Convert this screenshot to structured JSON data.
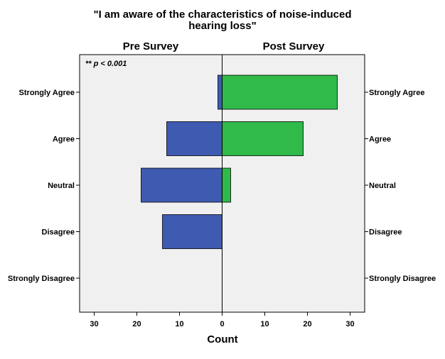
{
  "chart_data": {
    "type": "bar",
    "orientation": "horizontal",
    "layout": "back-to-back population pyramid",
    "title_line1": "\"I am aware of the characteristics of noise-induced",
    "title_line2": "hearing loss\"",
    "panels": [
      "Pre Survey",
      "Post Survey"
    ],
    "categories": [
      "Strongly Agree",
      "Agree",
      "Neutral",
      "Disagree",
      "Strongly Disagree"
    ],
    "series": [
      {
        "name": "Pre Survey",
        "color": "#3f5ab1",
        "values": [
          1,
          13,
          19,
          14,
          0
        ]
      },
      {
        "name": "Post Survey",
        "color": "#2fba49",
        "values": [
          27,
          19,
          2,
          0,
          0
        ]
      }
    ],
    "xlabel": "Count",
    "xlim": [
      -33.5,
      33.5
    ],
    "xticks": [
      -30,
      -20,
      -10,
      0,
      10,
      20,
      30
    ],
    "xtick_labels": [
      "30",
      "20",
      "10",
      "0",
      "10",
      "20",
      "30"
    ],
    "annotation": "** p < 0.001",
    "background": "#f0f0f0",
    "grid": false,
    "legend": "none"
  }
}
